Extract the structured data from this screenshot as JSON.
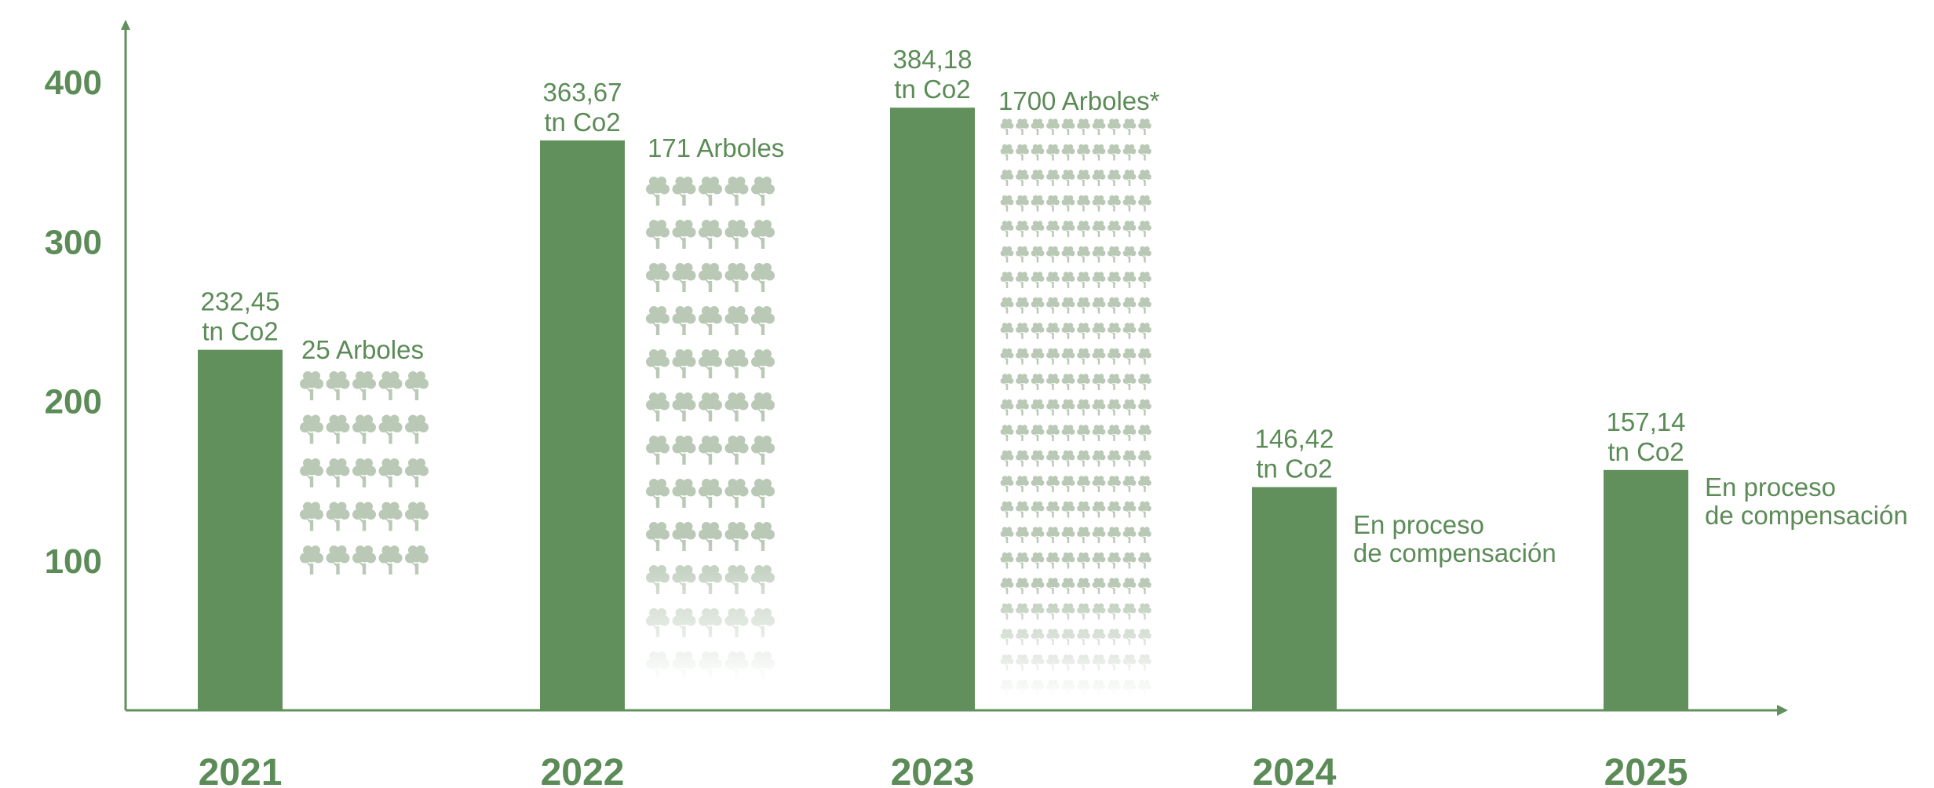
{
  "chart_data": {
    "type": "bar",
    "categories": [
      "2021",
      "2022",
      "2023",
      "2024",
      "2025"
    ],
    "values": [
      232.45,
      363.67,
      384.18,
      146.42,
      157.14
    ],
    "value_labels": [
      [
        "232,45",
        "tn Co2"
      ],
      [
        "363,67",
        "tn Co2"
      ],
      [
        "384,18",
        "tn Co2"
      ],
      [
        "146,42",
        "tn Co2"
      ],
      [
        "157,14",
        "tn Co2"
      ]
    ],
    "tree_labels": [
      [
        "25 Arboles"
      ],
      [
        "171 Arboles"
      ],
      [
        "1700 Arboles*"
      ],
      [
        "En proceso",
        "de compensación"
      ],
      [
        "En proceso",
        "de compensación"
      ]
    ],
    "tree_counts": [
      25,
      171,
      1700,
      null,
      null
    ],
    "yticks": [
      100,
      200,
      300,
      400
    ],
    "ylim": [
      0,
      440
    ],
    "xlabel": "",
    "ylabel": "",
    "title": "",
    "grid": false,
    "colors": {
      "bar": "#62905d",
      "axis": "#62905d",
      "text": "#5b8b56",
      "tree": "#b9c9b6"
    },
    "tree_icon": "tree-icon"
  }
}
